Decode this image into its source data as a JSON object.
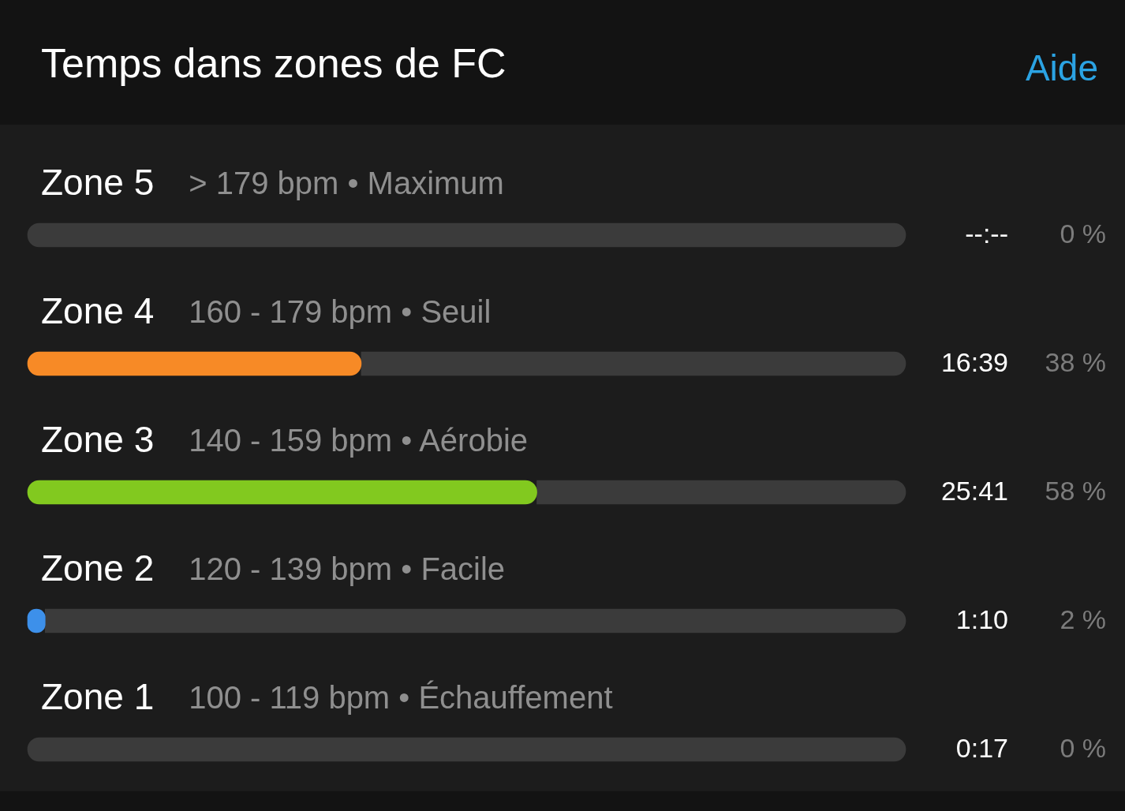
{
  "chart_data": {
    "type": "bar",
    "orientation": "horizontal",
    "stacked": true,
    "title": "Temps dans zones de FC",
    "categories": [
      "Zone 5",
      "Zone 4",
      "Zone 3",
      "Zone 2",
      "Zone 1"
    ],
    "series": [
      {
        "values": [
          0,
          38,
          58,
          2,
          0
        ],
        "colors": [
          null,
          "#f78a26",
          "#82c91f",
          "#3d90ea",
          null
        ],
        "value_labels": [
          "0 %",
          "38 %",
          "58 %",
          "2 %",
          "0 %"
        ]
      },
      {
        "values": [
          100,
          62,
          42,
          98,
          100
        ],
        "color": "#3b3b3b"
      }
    ],
    "xlim": [
      0,
      100
    ],
    "tick_labels": "y",
    "annotations": [
      "Aide",
      "> 179 bpm • Maximum",
      "--:--",
      "160 - 179 bpm • Seuil",
      "16:39",
      "140 - 159 bpm • Aérobie",
      "25:41",
      "120 - 139 bpm • Facile",
      "1:10",
      "100 - 119 bpm • Échauffement",
      "0:17"
    ]
  }
}
